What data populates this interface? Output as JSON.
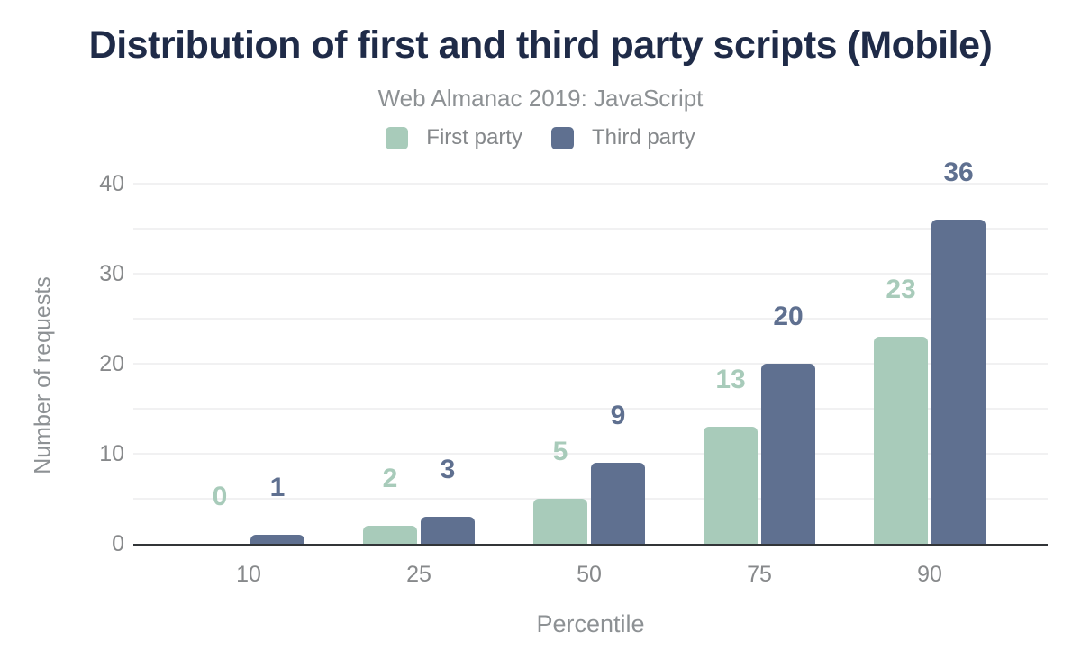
{
  "chart": {
    "title": "Distribution of first and third party scripts (Mobile)",
    "subtitle": "Web Almanac 2019: JavaScript"
  },
  "colors": {
    "title_text": "#1f2b48",
    "muted_text": "#8d9194",
    "tick_text": "#87898b",
    "gridline": "#f1f1f2",
    "axis_line": "#323538",
    "first_party": "#a8cbba",
    "third_party": "#5f7090"
  },
  "chart_data": {
    "type": "bar",
    "title": "Distribution of first and third party scripts (Mobile)",
    "subtitle": "Web Almanac 2019: JavaScript",
    "categories": [
      "10",
      "25",
      "50",
      "75",
      "90"
    ],
    "series": [
      {
        "name": "First party",
        "color": "#a8cbba",
        "values": [
          0,
          2,
          5,
          13,
          23
        ]
      },
      {
        "name": "Third party",
        "color": "#5f7090",
        "values": [
          1,
          3,
          9,
          20,
          36
        ]
      }
    ],
    "xlabel": "Percentile",
    "ylabel": "Number of requests",
    "ylim": [
      0,
      40
    ],
    "yticks": [
      0,
      10,
      20,
      30,
      40
    ],
    "minor_grid_step": 5,
    "grid": "horizontal",
    "legend_position": "top",
    "data_labels": "above bars, colored as series"
  }
}
